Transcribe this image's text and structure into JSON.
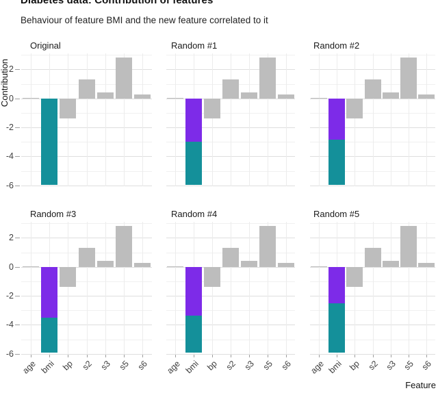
{
  "header": {
    "title": "Diabetes data: Contribution of features",
    "subtitle": "Behaviour of feature BMI and the new feature correlated to it"
  },
  "chart_data": {
    "type": "bar",
    "faceted": true,
    "title": "Diabetes data: Contribution of features",
    "subtitle": "Behaviour of feature BMI and the new feature correlated to it",
    "xlabel": "Feature",
    "ylabel": "Contribution",
    "categories": [
      "age",
      "bmi",
      "bp",
      "s2",
      "s3",
      "s5",
      "s6"
    ],
    "y_ticks": [
      2,
      0,
      -2,
      -4,
      -6
    ],
    "ylim": [
      -6.1,
      3.1
    ],
    "grid": "major and minor horizontal gridlines, vertical gridlines per category",
    "legend": "none",
    "shared_feature_values": {
      "age": 0.05,
      "bp": -1.4,
      "s2": 1.3,
      "s3": 0.4,
      "s5": 2.8,
      "s6": 0.25
    },
    "panels": [
      {
        "label": "Original",
        "bmi_stack": [
          {
            "name": "bmi",
            "color": "teal",
            "value": -5.95
          }
        ]
      },
      {
        "label": "Random #1",
        "bmi_stack": [
          {
            "name": "correlated_feature",
            "color": "purple",
            "value": -3.0
          },
          {
            "name": "bmi",
            "color": "teal",
            "value": -2.95
          }
        ]
      },
      {
        "label": "Random #2",
        "bmi_stack": [
          {
            "name": "correlated_feature",
            "color": "purple",
            "value": -2.85
          },
          {
            "name": "bmi",
            "color": "teal",
            "value": -3.1
          }
        ]
      },
      {
        "label": "Random #3",
        "bmi_stack": [
          {
            "name": "correlated_feature",
            "color": "purple",
            "value": -3.5
          },
          {
            "name": "bmi",
            "color": "teal",
            "value": -2.4
          }
        ]
      },
      {
        "label": "Random #4",
        "bmi_stack": [
          {
            "name": "correlated_feature",
            "color": "purple",
            "value": -3.35
          },
          {
            "name": "bmi",
            "color": "teal",
            "value": -2.55
          }
        ]
      },
      {
        "label": "Random #5",
        "bmi_stack": [
          {
            "name": "correlated_feature",
            "color": "purple",
            "value": -2.5
          },
          {
            "name": "bmi",
            "color": "teal",
            "value": -3.4
          }
        ]
      }
    ],
    "colors": {
      "teal": "#14909A",
      "purple": "#7D2BE8",
      "gray": "#BDBDBD"
    }
  }
}
